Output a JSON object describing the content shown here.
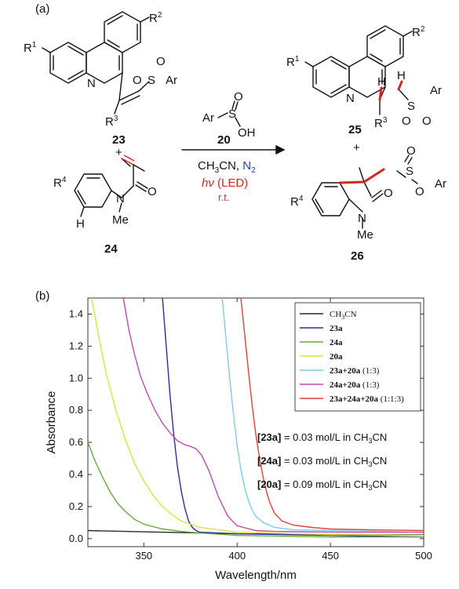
{
  "panel_a": {
    "label": "(a)",
    "compound_23": "23",
    "compound_24": "24",
    "compound_25": "25",
    "compound_26": "26",
    "compound_20": "20",
    "plus": "+",
    "r1": "R",
    "r1_sup": "1",
    "r2": "R",
    "r2_sup": "2",
    "r3": "R",
    "r3_sup": "3",
    "r4": "R",
    "r4_sup": "4",
    "n": "N",
    "o": "O",
    "s": "S",
    "ar": "Ar",
    "h": "H",
    "me": "Me",
    "oh": "OH",
    "solvent_main": "CH",
    "solvent_sub": "3",
    "solvent_rest": "CN, ",
    "atmosphere": "N",
    "atmosphere_sub": "2",
    "light_italic": "hν",
    "light_rest": " (LED)",
    "temperature": "r.t."
  },
  "panel_b": {
    "label": "(b)",
    "conc_23a_label": "[23a]",
    "conc_23a_text": " = 0.03 mol/L in CH",
    "conc_23a_sub": "3",
    "conc_23a_end": "CN",
    "conc_24a_label": "[24a]",
    "conc_24a_text": " = 0.03 mol/L in CH",
    "conc_24a_sub": "3",
    "conc_24a_end": "CN",
    "conc_20a_label": "[20a]",
    "conc_20a_text": " = 0.09 mol/L in CH",
    "conc_20a_sub": "3",
    "conc_20a_end": "CN"
  },
  "chart_data": {
    "type": "line",
    "title": "",
    "xlabel": "Wavelength/nm",
    "ylabel": "Absorbance",
    "xlim": [
      320,
      500
    ],
    "ylim": [
      -0.05,
      1.5
    ],
    "xticks": [
      350,
      400,
      450,
      500
    ],
    "yticks": [
      0.0,
      0.2,
      0.4,
      0.6,
      0.8,
      1.0,
      1.2,
      1.4
    ],
    "grid": false,
    "legend_position": "top-right",
    "series": [
      {
        "name": "CH3CN",
        "legend_main": "CH",
        "legend_sub": "3",
        "legend_end": "CN",
        "color": "#2b2b2b",
        "x": [
          320,
          340,
          360,
          380,
          400,
          420,
          440,
          460,
          480,
          500
        ],
        "y": [
          0.05,
          0.045,
          0.04,
          0.035,
          0.03,
          0.028,
          0.026,
          0.025,
          0.024,
          0.023
        ]
      },
      {
        "name": "23a",
        "legend_main": "23a",
        "legend_sub": "",
        "legend_end": "",
        "color": "#2d2d9a",
        "x": [
          360,
          362,
          364,
          366,
          368,
          370,
          372,
          374,
          376,
          378,
          380,
          400,
          450,
          500
        ],
        "y": [
          1.5,
          1.2,
          0.9,
          0.65,
          0.45,
          0.3,
          0.19,
          0.11,
          0.07,
          0.05,
          0.04,
          0.03,
          0.02,
          0.01
        ]
      },
      {
        "name": "24a",
        "legend_main": "24a",
        "legend_sub": "",
        "legend_end": "",
        "color": "#6aaa3a",
        "x": [
          320,
          324,
          328,
          332,
          336,
          340,
          345,
          350,
          360,
          370,
          380,
          400,
          450,
          500
        ],
        "y": [
          0.6,
          0.48,
          0.38,
          0.29,
          0.22,
          0.17,
          0.12,
          0.09,
          0.06,
          0.045,
          0.035,
          0.02,
          0.01,
          0.01
        ]
      },
      {
        "name": "20a",
        "legend_main": "20a",
        "legend_sub": "",
        "legend_end": "",
        "color": "#e0e040",
        "x": [
          322,
          326,
          330,
          335,
          340,
          345,
          350,
          355,
          360,
          365,
          370,
          380,
          400,
          450,
          500
        ],
        "y": [
          1.5,
          1.25,
          1.02,
          0.8,
          0.62,
          0.47,
          0.36,
          0.27,
          0.2,
          0.15,
          0.11,
          0.07,
          0.04,
          0.025,
          0.02
        ]
      },
      {
        "name": "23a+20a (1:3)",
        "legend_main": "23a+20a",
        "legend_sub": "",
        "legend_end": " (1:3)",
        "color": "#7fcbe6",
        "x": [
          392,
          394,
          396,
          398,
          400,
          402,
          404,
          406,
          408,
          410,
          414,
          420,
          430,
          450,
          500
        ],
        "y": [
          1.5,
          1.25,
          1.0,
          0.78,
          0.58,
          0.43,
          0.32,
          0.24,
          0.18,
          0.14,
          0.1,
          0.07,
          0.055,
          0.05,
          0.04
        ]
      },
      {
        "name": "24a+20a (1:3)",
        "legend_main": "24a+20a",
        "legend_sub": "",
        "legend_end": " (1:3)",
        "color": "#c24aa8",
        "x": [
          339,
          342,
          345,
          348,
          352,
          356,
          360,
          364,
          368,
          372,
          375,
          378,
          381,
          385,
          390,
          395,
          400,
          410,
          420,
          440,
          460,
          500
        ],
        "y": [
          1.5,
          1.3,
          1.15,
          1.02,
          0.9,
          0.8,
          0.72,
          0.66,
          0.61,
          0.585,
          0.575,
          0.56,
          0.52,
          0.42,
          0.26,
          0.14,
          0.08,
          0.05,
          0.045,
          0.042,
          0.04,
          0.04
        ]
      },
      {
        "name": "23a+24a+20a (1:1:3)",
        "legend_main": "23a+24a+20a",
        "legend_sub": "",
        "legend_end": " (1:1:3)",
        "color": "#e0433a",
        "x": [
          402,
          404,
          406,
          408,
          410,
          412,
          414,
          416,
          418,
          420,
          424,
          430,
          440,
          450,
          470,
          500
        ],
        "y": [
          1.5,
          1.28,
          1.05,
          0.84,
          0.65,
          0.5,
          0.38,
          0.28,
          0.21,
          0.16,
          0.11,
          0.085,
          0.07,
          0.06,
          0.055,
          0.05
        ]
      }
    ]
  }
}
